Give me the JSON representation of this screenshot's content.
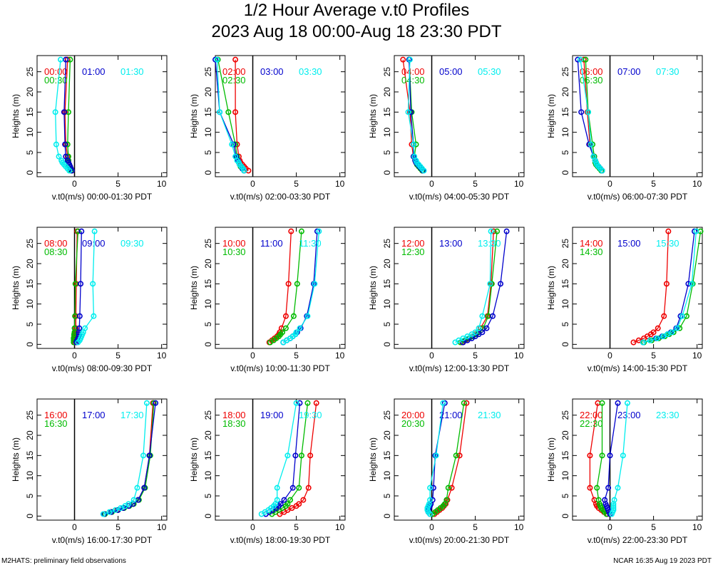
{
  "title": {
    "line1": "1/2 Hour Average v.t0 Profiles",
    "line2": "2023 Aug 18 00:00-Aug 18 23:30 PDT"
  },
  "footer": {
    "left": "M2HATS: preliminary field observations",
    "right": "NCAR 16:35 Aug 19 2023 PDT"
  },
  "axes": {
    "ylabel": "Heights (m)",
    "xlabel_prefix": "v.t0(m/s)",
    "xlim": [
      -4.3,
      10.6
    ],
    "ylim": [
      -1,
      29
    ],
    "xticks": [
      0,
      5,
      10
    ],
    "yticks": [
      0,
      5,
      10,
      15,
      20,
      25
    ],
    "heights": [
      0.5,
      1,
      1.5,
      2,
      2.5,
      3,
      4,
      7,
      15,
      28
    ]
  },
  "colors": {
    "red": "#ee0000",
    "green": "#00bb00",
    "blue": "#0000cc",
    "cyan": "#00eeee",
    "frame": "#000000"
  },
  "chart_data": [
    {
      "type": "line",
      "panel_label": "00:00-01:30 PDT",
      "series": [
        {
          "name": "00:00",
          "color": "red",
          "x": [
            -0.3,
            -0.4,
            -0.5,
            -0.6,
            -0.7,
            -0.7,
            -0.8,
            -1.0,
            -1.1,
            -0.8
          ]
        },
        {
          "name": "00:30",
          "color": "green",
          "x": [
            -0.4,
            -0.5,
            -0.6,
            -0.6,
            -0.7,
            -0.7,
            -0.7,
            -0.8,
            -0.7,
            -0.5
          ]
        },
        {
          "name": "01:00",
          "color": "blue",
          "x": [
            -0.3,
            -0.4,
            -0.5,
            -0.6,
            -0.7,
            -0.8,
            -1.0,
            -1.1,
            -1.2,
            -1.0
          ]
        },
        {
          "name": "01:30",
          "color": "cyan",
          "x": [
            -0.6,
            -0.8,
            -1.0,
            -1.2,
            -1.4,
            -1.5,
            -1.8,
            -2.1,
            -2.2,
            -1.6
          ]
        }
      ]
    },
    {
      "type": "line",
      "panel_label": "02:00-03:30 PDT",
      "series": [
        {
          "name": "02:00",
          "color": "red",
          "x": [
            -0.5,
            -0.8,
            -1.0,
            -1.2,
            -1.4,
            -1.5,
            -1.6,
            -1.8,
            -2.0,
            -2.0
          ]
        },
        {
          "name": "02:30",
          "color": "green",
          "x": [
            -1.0,
            -1.2,
            -1.4,
            -1.5,
            -1.6,
            -1.7,
            -1.8,
            -2.0,
            -2.8,
            -4.0
          ]
        },
        {
          "name": "03:00",
          "color": "blue",
          "x": [
            -1.0,
            -1.2,
            -1.3,
            -1.5,
            -1.6,
            -1.7,
            -1.9,
            -2.2,
            -3.8,
            -4.3
          ]
        },
        {
          "name": "03:30",
          "color": "cyan",
          "x": [
            -1.0,
            -1.1,
            -1.3,
            -1.5,
            -1.6,
            -1.8,
            -2.0,
            -2.4,
            -3.8,
            -4.1
          ]
        }
      ]
    },
    {
      "type": "line",
      "panel_label": "04:00-05:30 PDT",
      "series": [
        {
          "name": "04:00",
          "color": "red",
          "x": [
            -1.0,
            -1.2,
            -1.4,
            -1.6,
            -1.8,
            -1.9,
            -2.1,
            -2.3,
            -2.5,
            -3.3
          ]
        },
        {
          "name": "04:30",
          "color": "green",
          "x": [
            -1.1,
            -1.3,
            -1.5,
            -1.7,
            -1.8,
            -1.9,
            -2.0,
            -1.8,
            -2.3,
            -2.6
          ]
        },
        {
          "name": "05:00",
          "color": "blue",
          "x": [
            -1.0,
            -1.2,
            -1.4,
            -1.6,
            -1.8,
            -1.9,
            -2.1,
            -2.1,
            -2.4,
            -2.6
          ]
        },
        {
          "name": "05:30",
          "color": "cyan",
          "x": [
            -0.9,
            -1.1,
            -1.3,
            -1.5,
            -1.7,
            -1.8,
            -2.0,
            -2.1,
            -2.7,
            -2.5
          ]
        }
      ]
    },
    {
      "type": "line",
      "panel_label": "06:00-07:30 PDT",
      "series": [
        {
          "name": "06:00",
          "color": "red",
          "x": [
            -0.9,
            -1.1,
            -1.3,
            -1.5,
            -1.6,
            -1.7,
            -1.8,
            -2.3,
            -2.6,
            -3.0
          ]
        },
        {
          "name": "06:30",
          "color": "green",
          "x": [
            -1.0,
            -1.2,
            -1.4,
            -1.6,
            -1.7,
            -1.7,
            -1.8,
            -2.0,
            -2.5,
            -2.8
          ]
        },
        {
          "name": "07:00",
          "color": "blue",
          "x": [
            -0.9,
            -1.1,
            -1.3,
            -1.5,
            -1.6,
            -1.7,
            -1.9,
            -2.4,
            -3.3,
            -3.7
          ]
        },
        {
          "name": "07:30",
          "color": "cyan",
          "x": [
            -0.9,
            -1.1,
            -1.3,
            -1.5,
            -1.6,
            -1.7,
            -1.9,
            -2.2,
            -2.5,
            -3.4
          ]
        }
      ]
    },
    {
      "type": "line",
      "panel_label": "08:00-09:30 PDT",
      "series": [
        {
          "name": "08:00",
          "color": "red",
          "x": [
            0.0,
            0.05,
            0.05,
            0.1,
            0.1,
            0.1,
            0.15,
            0.15,
            0.2,
            0.3
          ]
        },
        {
          "name": "08:30",
          "color": "green",
          "x": [
            -0.1,
            -0.1,
            -0.1,
            -0.05,
            -0.05,
            0.0,
            0.0,
            0.05,
            0.1,
            0.4
          ]
        },
        {
          "name": "09:00",
          "color": "blue",
          "x": [
            0.2,
            0.3,
            0.4,
            0.5,
            0.5,
            0.5,
            0.55,
            0.6,
            0.7,
            0.8
          ]
        },
        {
          "name": "09:30",
          "color": "cyan",
          "x": [
            0.4,
            0.6,
            0.7,
            0.8,
            0.9,
            1.0,
            1.2,
            2.2,
            2.1,
            2.3
          ]
        }
      ]
    },
    {
      "type": "line",
      "panel_label": "10:00-11:30 PDT",
      "series": [
        {
          "name": "10:00",
          "color": "red",
          "x": [
            1.9,
            2.2,
            2.5,
            2.8,
            3.0,
            3.1,
            3.3,
            3.8,
            4.1,
            4.4
          ]
        },
        {
          "name": "10:30",
          "color": "green",
          "x": [
            2.0,
            2.4,
            2.7,
            3.0,
            3.2,
            3.4,
            3.8,
            4.7,
            5.1,
            5.6
          ]
        },
        {
          "name": "11:00",
          "color": "blue",
          "x": [
            3.5,
            3.9,
            4.3,
            4.6,
            4.9,
            5.1,
            5.5,
            6.2,
            7.0,
            7.4
          ]
        },
        {
          "name": "11:30",
          "color": "cyan",
          "x": [
            3.5,
            3.9,
            4.3,
            4.6,
            4.9,
            5.0,
            5.4,
            6.3,
            7.1,
            7.6
          ]
        }
      ]
    },
    {
      "type": "line",
      "panel_label": "12:00-13:30 PDT",
      "series": [
        {
          "name": "12:00",
          "color": "red",
          "x": [
            3.5,
            3.9,
            4.3,
            4.7,
            5.0,
            5.3,
            5.6,
            6.4,
            6.8,
            7.1
          ]
        },
        {
          "name": "12:30",
          "color": "green",
          "x": [
            3.3,
            3.8,
            4.3,
            4.7,
            5.1,
            5.4,
            5.9,
            6.5,
            6.9,
            7.5
          ]
        },
        {
          "name": "13:00",
          "color": "blue",
          "x": [
            3.6,
            4.1,
            4.6,
            5.0,
            5.4,
            5.8,
            6.3,
            7.0,
            7.9,
            8.6
          ]
        },
        {
          "name": "13:30",
          "color": "cyan",
          "x": [
            2.7,
            3.1,
            3.6,
            4.1,
            4.6,
            5.0,
            5.4,
            5.8,
            6.7,
            6.8
          ]
        }
      ]
    },
    {
      "type": "line",
      "panel_label": "14:00-15:30 PDT",
      "series": [
        {
          "name": "14:00",
          "color": "red",
          "x": [
            2.7,
            3.3,
            3.9,
            4.3,
            4.7,
            5.0,
            5.5,
            6.2,
            6.5,
            6.7
          ]
        },
        {
          "name": "14:30",
          "color": "green",
          "x": [
            3.9,
            4.8,
            5.6,
            6.3,
            6.8,
            7.3,
            8.0,
            8.8,
            9.5,
            10.4
          ]
        },
        {
          "name": "15:00",
          "color": "blue",
          "x": [
            3.8,
            4.6,
            5.3,
            6.0,
            6.6,
            7.0,
            7.6,
            8.1,
            9.0,
            9.7
          ]
        },
        {
          "name": "15:30",
          "color": "cyan",
          "x": [
            3.8,
            4.6,
            5.4,
            6.1,
            6.6,
            7.1,
            7.7,
            8.3,
            9.4,
            9.9
          ]
        }
      ]
    },
    {
      "type": "line",
      "panel_label": "16:00-17:30 PDT",
      "series": [
        {
          "name": "16:00",
          "color": "red",
          "x": [
            3.4,
            4.2,
            4.9,
            5.6,
            6.2,
            6.7,
            7.3,
            8.0,
            8.6,
            9.0
          ]
        },
        {
          "name": "16:30",
          "color": "green",
          "x": [
            3.5,
            4.3,
            5.0,
            5.7,
            6.3,
            6.8,
            7.4,
            8.1,
            8.7,
            9.1
          ]
        },
        {
          "name": "17:00",
          "color": "blue",
          "x": [
            3.4,
            4.2,
            5.0,
            5.6,
            6.2,
            6.7,
            7.3,
            8.0,
            8.6,
            9.3
          ]
        },
        {
          "name": "17:30",
          "color": "cyan",
          "x": [
            3.3,
            4.0,
            4.7,
            5.3,
            5.8,
            6.2,
            6.8,
            7.2,
            7.9,
            8.3
          ]
        }
      ]
    },
    {
      "type": "line",
      "panel_label": "18:00-19:30 PDT",
      "series": [
        {
          "name": "18:00",
          "color": "red",
          "x": [
            3.1,
            3.6,
            4.0,
            4.5,
            5.0,
            5.3,
            5.8,
            6.4,
            6.6,
            7.3
          ]
        },
        {
          "name": "18:30",
          "color": "green",
          "x": [
            2.2,
            2.6,
            3.0,
            3.4,
            3.8,
            4.0,
            4.3,
            5.3,
            5.6,
            6.3
          ]
        },
        {
          "name": "19:00",
          "color": "blue",
          "x": [
            1.5,
            1.9,
            2.3,
            2.7,
            3.0,
            3.2,
            3.6,
            4.6,
            4.9,
            5.4
          ]
        },
        {
          "name": "19:30",
          "color": "cyan",
          "x": [
            1.0,
            1.4,
            1.8,
            2.1,
            2.4,
            2.6,
            2.8,
            2.8,
            4.0,
            5.0
          ]
        }
      ]
    },
    {
      "type": "line",
      "panel_label": "20:00-21:30 PDT",
      "series": [
        {
          "name": "20:00",
          "color": "red",
          "x": [
            0.3,
            0.6,
            0.9,
            1.2,
            1.4,
            1.6,
            1.8,
            2.3,
            3.2,
            4.0
          ]
        },
        {
          "name": "20:30",
          "color": "green",
          "x": [
            0.1,
            0.4,
            0.7,
            1.0,
            1.3,
            1.5,
            1.7,
            1.9,
            2.8,
            3.7
          ]
        },
        {
          "name": "21:00",
          "color": "blue",
          "x": [
            -0.2,
            -0.4,
            -0.4,
            -0.3,
            -0.2,
            -0.1,
            0.1,
            0.2,
            0.4,
            1.5
          ]
        },
        {
          "name": "21:30",
          "color": "cyan",
          "x": [
            -0.2,
            -0.4,
            -0.5,
            -0.5,
            -0.4,
            -0.3,
            -0.2,
            -0.2,
            0.5,
            1.3
          ]
        }
      ]
    },
    {
      "type": "line",
      "panel_label": "22:00-23:30 PDT",
      "series": [
        {
          "name": "22:00",
          "color": "red",
          "x": [
            -0.3,
            -0.7,
            -1.0,
            -1.3,
            -1.5,
            -1.6,
            -1.8,
            -2.3,
            -2.3,
            -1.4
          ]
        },
        {
          "name": "22:30",
          "color": "green",
          "x": [
            -0.4,
            -0.6,
            -0.8,
            -1.0,
            -1.1,
            -1.2,
            -1.3,
            -1.5,
            -0.9,
            -0.9
          ]
        },
        {
          "name": "23:00",
          "color": "blue",
          "x": [
            0.0,
            -0.1,
            -0.2,
            -0.3,
            -0.4,
            -0.5,
            -0.6,
            -0.2,
            0.0,
            0.9
          ]
        },
        {
          "name": "23:30",
          "color": "cyan",
          "x": [
            0.2,
            0.3,
            0.4,
            0.4,
            0.4,
            0.4,
            0.5,
            0.9,
            1.5,
            2.0
          ]
        }
      ]
    }
  ]
}
